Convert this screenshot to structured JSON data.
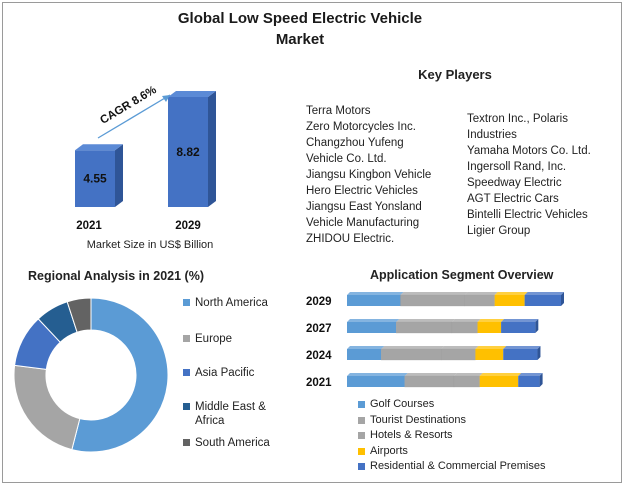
{
  "title_line1": "Global Low Speed Electric Vehicle",
  "title_line2": "Market",
  "key_players": {
    "title": "Key Players",
    "column1": [
      "Terra Motors",
      "Zero Motorcycles Inc.",
      "Changzhou Yufeng",
      "Vehicle Co. Ltd.",
      "Jiangsu  Kingbon Vehicle",
      "Hero Electric Vehicles",
      "Jiangsu East Yonsland",
      "Vehicle Manufacturing",
      "ZHIDOU Electric."
    ],
    "column2": [
      "Textron Inc., Polaris",
      "Industries",
      "Yamaha  Motors Co. Ltd.",
      "Ingersoll Rand, Inc.",
      "Speedway Electric",
      "AGT Electric Cars",
      "Bintelli Electric Vehicles",
      "Ligier Group"
    ]
  },
  "colors": {
    "bar_front": "#4472c4",
    "bar_side": "#2f5597",
    "bar_top": "#5b8ad6",
    "north_america": "#5b9bd5",
    "europe": "#a5a5a5",
    "asia_pacific": "#4472c4",
    "middle_east_africa": "#255e91",
    "south_america": "#636363",
    "golf": "#5b9bd5",
    "tourist": "#a5a5a5",
    "hotels": "#a5a5a5",
    "airports": "#ffc000",
    "residential": "#4472c4"
  },
  "chart_data": [
    {
      "type": "bar",
      "categories": [
        "2021",
        "2029"
      ],
      "values": [
        4.55,
        8.82
      ],
      "value_labels": [
        "4.55",
        "8.82"
      ],
      "xlabel": "Market Size in US$ Billion",
      "annotation": "CAGR 8.6%"
    },
    {
      "type": "pie",
      "title": "Regional Analysis in 2021 (%)",
      "labels": [
        "North America",
        "Europe",
        "Asia Pacific",
        "Middle East & Africa",
        "South America"
      ],
      "legend_lines": [
        [
          "North America"
        ],
        [
          "Europe"
        ],
        [
          "Asia Pacific"
        ],
        [
          "Middle East &",
          "Africa"
        ],
        [
          "South America"
        ]
      ],
      "values": [
        54,
        23,
        11,
        7,
        5
      ]
    },
    {
      "type": "bar",
      "orientation": "horizontal",
      "stacked": true,
      "title": "Application Segment Overview",
      "categories": [
        "2029",
        "2027",
        "2024",
        "2021"
      ],
      "series": [
        {
          "name": "Golf Courses",
          "values": [
            25,
            23,
            16,
            27
          ]
        },
        {
          "name": "Tourist Destinations",
          "values": [
            30,
            26,
            28,
            23
          ]
        },
        {
          "name": "Hotels & Resorts",
          "values": [
            14,
            12,
            16,
            12
          ]
        },
        {
          "name": "Airports",
          "values": [
            14,
            11,
            13,
            18
          ]
        },
        {
          "name": "Residential & Commercial Premises",
          "values": [
            17,
            16,
            16,
            10
          ]
        }
      ]
    }
  ]
}
